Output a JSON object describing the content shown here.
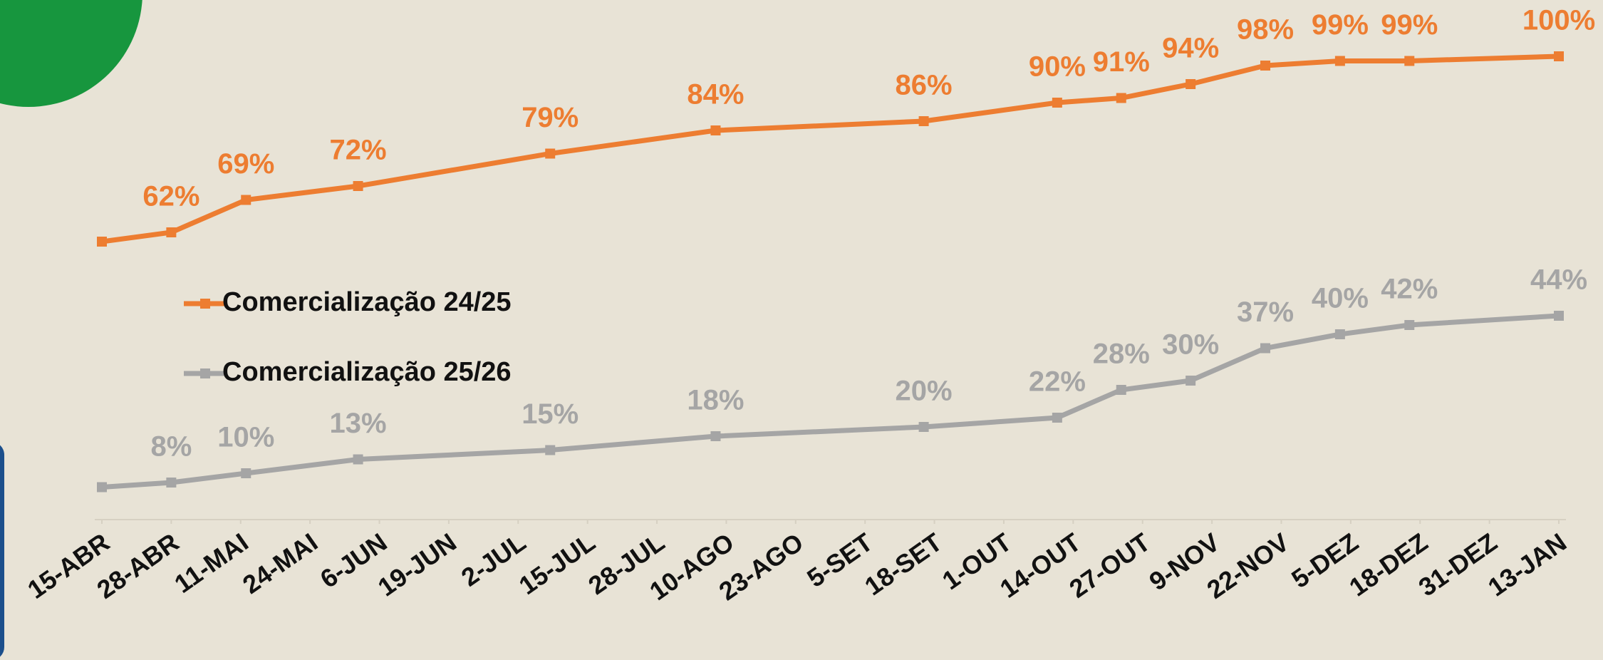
{
  "chart_data": {
    "type": "line",
    "xlim": [
      0,
      273
    ],
    "xticks": [
      {
        "value": 0,
        "label": "15-ABR"
      },
      {
        "value": 13,
        "label": "28-ABR"
      },
      {
        "value": 26,
        "label": "11-MAI"
      },
      {
        "value": 39,
        "label": "24-MAI"
      },
      {
        "value": 52,
        "label": "6-JUN"
      },
      {
        "value": 65,
        "label": "19-JUN"
      },
      {
        "value": 78,
        "label": "2-JUL"
      },
      {
        "value": 91,
        "label": "15-JUL"
      },
      {
        "value": 104,
        "label": "28-JUL"
      },
      {
        "value": 117,
        "label": "10-AGO"
      },
      {
        "value": 130,
        "label": "23-AGO"
      },
      {
        "value": 143,
        "label": "5-SET"
      },
      {
        "value": 156,
        "label": "18-SET"
      },
      {
        "value": 169,
        "label": "1-OUT"
      },
      {
        "value": 182,
        "label": "14-OUT"
      },
      {
        "value": 195,
        "label": "27-OUT"
      },
      {
        "value": 208,
        "label": "9-NOV"
      },
      {
        "value": 221,
        "label": "22-NOV"
      },
      {
        "value": 234,
        "label": "5-DEZ"
      },
      {
        "value": 247,
        "label": "18-DEZ"
      },
      {
        "value": 260,
        "label": "31-DEZ"
      },
      {
        "value": 273,
        "label": "13-JAN"
      }
    ],
    "ylim": [
      0,
      100
    ],
    "x": [
      0,
      13,
      27,
      48,
      84,
      115,
      154,
      179,
      191,
      204,
      218,
      232,
      245,
      273
    ],
    "series": [
      {
        "name": "Comercialização 24/25",
        "color": "#ed7d31",
        "values": [
          60,
          62,
          69,
          72,
          79,
          84,
          86,
          90,
          91,
          94,
          98,
          99,
          99,
          100
        ],
        "value_labels": [
          null,
          "62%",
          "69%",
          "72%",
          "79%",
          "84%",
          "86%",
          "90%",
          "91%",
          "94%",
          "98%",
          "99%",
          "99%",
          "100%"
        ]
      },
      {
        "name": "Comercialização 25/26",
        "color": "#a5a5a5",
        "values": [
          7,
          8,
          10,
          13,
          15,
          18,
          20,
          22,
          28,
          30,
          37,
          40,
          42,
          44
        ],
        "value_labels": [
          null,
          "8%",
          "10%",
          "13%",
          "15%",
          "18%",
          "20%",
          "22%",
          "28%",
          "30%",
          "37%",
          "40%",
          "42%",
          "44%"
        ]
      }
    ]
  }
}
